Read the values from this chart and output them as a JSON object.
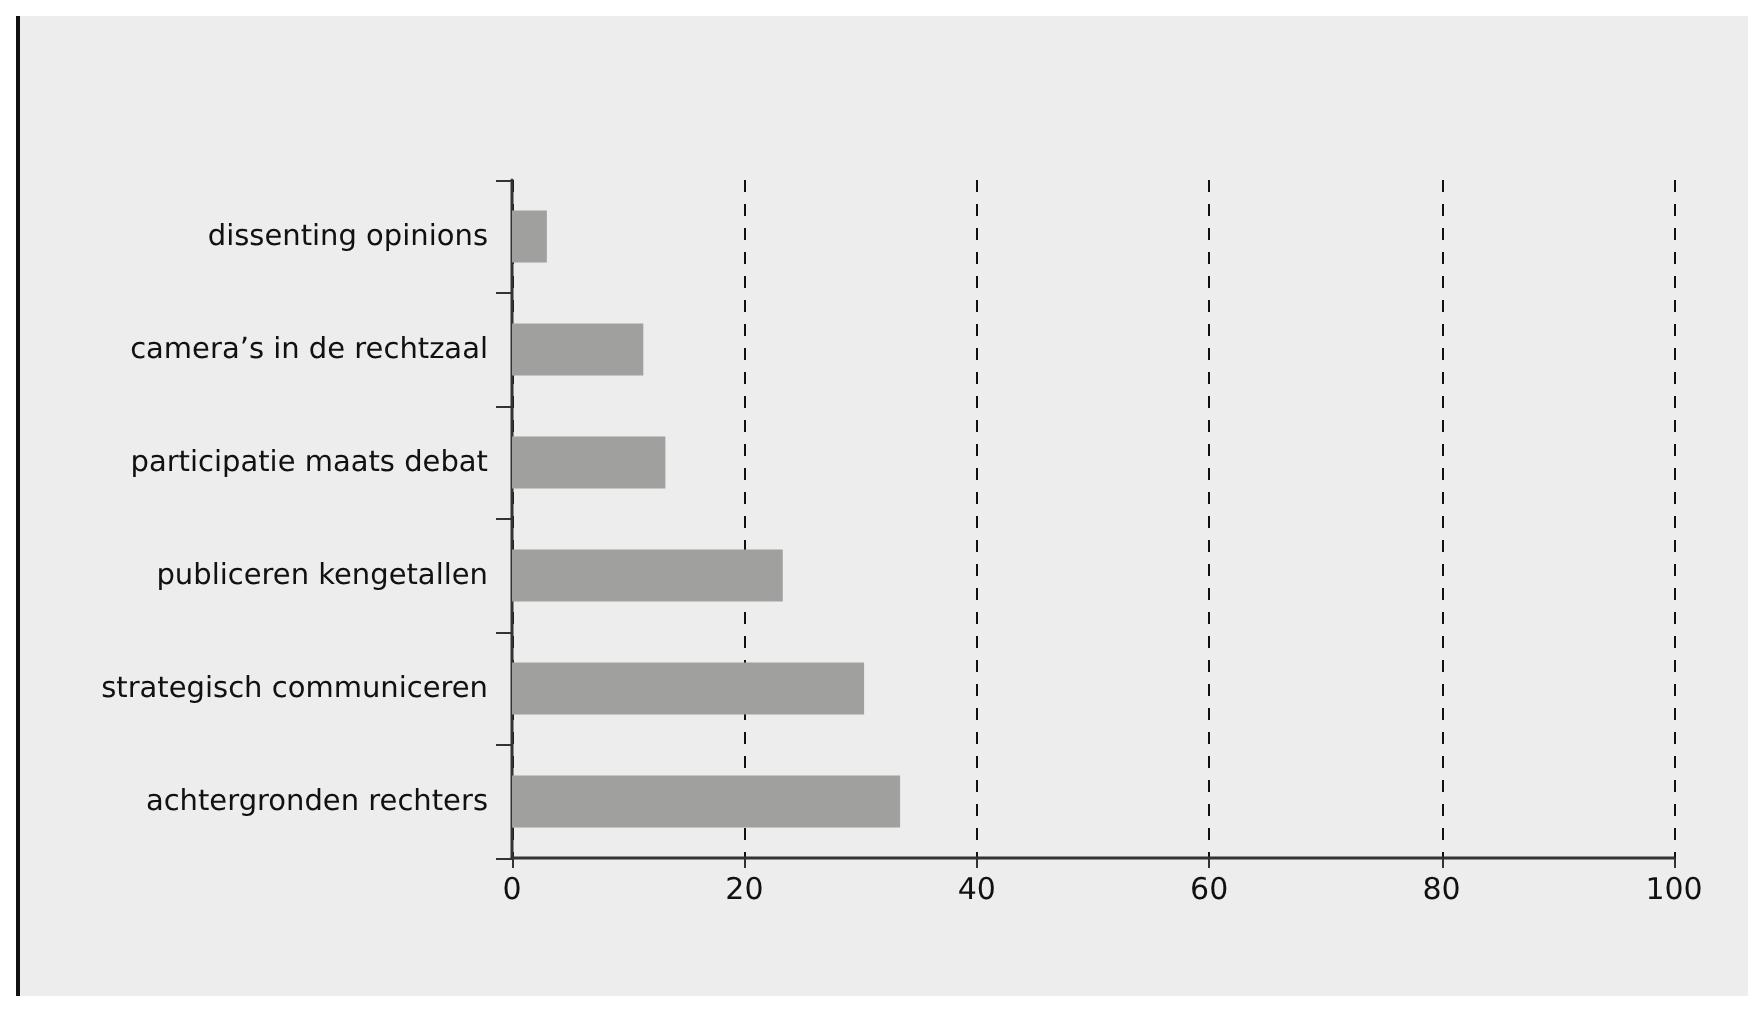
{
  "chart_data": {
    "type": "bar",
    "orientation": "horizontal",
    "categories": [
      "dissenting opinions",
      "camera’s in de rechtzaal",
      "participatie maats debat",
      "publiceren kengetallen",
      "strategisch communiceren",
      "achtergronden rechters"
    ],
    "values": [
      3,
      11.3,
      13.2,
      23.3,
      30.3,
      33.4
    ],
    "color": "#a0a09e",
    "xlim": [
      0,
      100
    ],
    "xticks": [
      0,
      20,
      40,
      60,
      80,
      100
    ],
    "grid": "x"
  }
}
